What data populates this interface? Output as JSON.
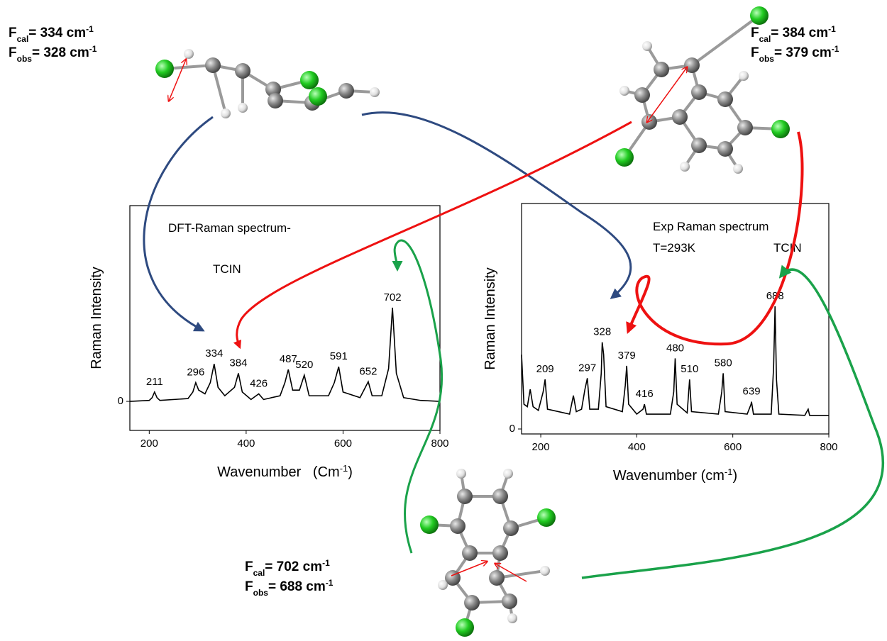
{
  "chart_data": [
    {
      "type": "line",
      "color": "#000000",
      "annotations": [
        "DFT-Raman spectrum-",
        "TCIN"
      ],
      "ylabel": "Raman Intensity",
      "xlabel": [
        "Wavenumber   (Cm",
        "-1",
        ")"
      ],
      "xlim": [
        160,
        800
      ],
      "xticks": [
        200,
        400,
        600,
        800
      ],
      "ylim": [
        -0.31,
        2.09
      ],
      "yticks": [
        0
      ],
      "x": [
        160,
        200,
        206,
        211,
        216,
        222,
        280,
        290,
        296,
        302,
        315,
        326,
        334,
        342,
        356,
        376,
        384,
        392,
        410,
        426,
        436,
        470,
        480,
        487,
        496,
        510,
        520,
        530,
        570,
        582,
        591,
        600,
        635,
        646,
        652,
        660,
        680,
        694,
        702,
        710,
        725,
        760,
        800
      ],
      "values": [
        0,
        0.01,
        0.04,
        0.1,
        0.04,
        0.01,
        0.03,
        0.1,
        0.2,
        0.12,
        0.08,
        0.2,
        0.4,
        0.15,
        0.06,
        0.15,
        0.3,
        0.1,
        0.02,
        0.08,
        0.02,
        0.06,
        0.2,
        0.34,
        0.12,
        0.12,
        0.28,
        0.06,
        0.06,
        0.2,
        0.37,
        0.1,
        0.04,
        0.15,
        0.21,
        0.06,
        0.06,
        0.35,
        1.0,
        0.3,
        0.04,
        0.01,
        0
      ],
      "peak_labels": [
        211,
        296,
        334,
        384,
        426,
        487,
        520,
        591,
        652,
        702
      ]
    },
    {
      "type": "line",
      "color": "#000000",
      "annotations": [
        "Exp Raman spectrum",
        "T=293K",
        "TCIN"
      ],
      "ylabel": "Raman Intensity",
      "xlabel": [
        "Wavenumber (cm",
        "-1",
        ")"
      ],
      "xlim": [
        160,
        800
      ],
      "xticks": [
        200,
        400,
        600,
        800
      ],
      "ylim": [
        -0.04,
        1.82
      ],
      "yticks": [
        0
      ],
      "x": [
        160,
        165,
        172,
        178,
        184,
        195,
        205,
        209,
        214,
        260,
        268,
        274,
        285,
        292,
        297,
        302,
        320,
        326,
        328,
        331,
        336,
        370,
        376,
        379,
        383,
        400,
        413,
        416,
        420,
        470,
        477,
        480,
        484,
        505,
        510,
        514,
        570,
        577,
        580,
        584,
        630,
        638,
        639,
        643,
        680,
        685,
        688,
        691,
        696,
        750,
        757,
        760,
        800
      ],
      "values": [
        0.6,
        0.2,
        0.18,
        0.32,
        0.18,
        0.15,
        0.3,
        0.4,
        0.16,
        0.12,
        0.27,
        0.14,
        0.16,
        0.32,
        0.41,
        0.16,
        0.16,
        0.45,
        0.7,
        0.6,
        0.18,
        0.14,
        0.35,
        0.51,
        0.2,
        0.12,
        0.16,
        0.2,
        0.12,
        0.12,
        0.3,
        0.57,
        0.2,
        0.13,
        0.4,
        0.14,
        0.12,
        0.3,
        0.45,
        0.14,
        0.12,
        0.2,
        0.22,
        0.12,
        0.12,
        0.5,
        0.99,
        0.4,
        0.12,
        0.11,
        0.16,
        0.11,
        0.11
      ],
      "peak_labels": [
        209,
        297,
        328,
        379,
        416,
        480,
        510,
        580,
        639,
        688
      ]
    }
  ],
  "frequency_labels": [
    {
      "lines": [
        [
          "F",
          "cal",
          "= 334 cm",
          "-1"
        ],
        [
          "F",
          "obs",
          "= 328 cm",
          "-1"
        ]
      ]
    },
    {
      "lines": [
        [
          "F",
          "cal",
          "= 384 cm",
          "-1"
        ],
        [
          "F",
          "obs",
          "= 379 cm",
          "-1"
        ]
      ]
    },
    {
      "lines": [
        [
          "F",
          "cal",
          "= 702 cm",
          "-1"
        ],
        [
          "F",
          "obs",
          "= 688 cm",
          "-1"
        ]
      ]
    }
  ]
}
